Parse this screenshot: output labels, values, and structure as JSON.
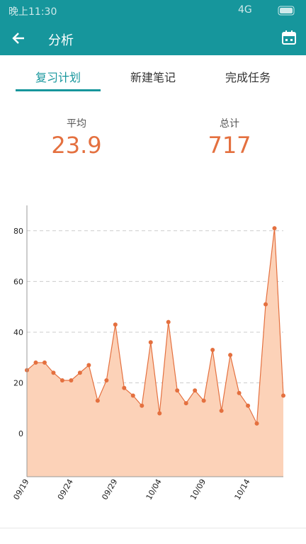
{
  "status_bar": {
    "time": "晚上11:30",
    "network": "4G"
  },
  "app_bar": {
    "title": "分析"
  },
  "tabs": [
    "复习计划",
    "新建笔记",
    "完成任务"
  ],
  "stats": [
    {
      "label": "平均",
      "value": "23.9"
    },
    {
      "label": "总计",
      "value": "717"
    }
  ],
  "chart_data": {
    "type": "area",
    "categories": [
      "09/19",
      null,
      null,
      null,
      null,
      "09/24",
      null,
      null,
      null,
      null,
      "09/29",
      null,
      null,
      null,
      null,
      "10/04",
      null,
      null,
      null,
      null,
      "10/09",
      null,
      null,
      null,
      null,
      "10/14",
      null,
      null,
      null,
      null
    ],
    "values": [
      25,
      28,
      28,
      24,
      21,
      21,
      24,
      27,
      13,
      21,
      43,
      18,
      15,
      11,
      36,
      8,
      44,
      17,
      12,
      17,
      13,
      33,
      9,
      31,
      16,
      11,
      4,
      51,
      81,
      15
    ],
    "color": "#e4703f",
    "fill": "#fcd2b8",
    "ylim": [
      -17,
      90
    ],
    "yticks": [
      0,
      20,
      40,
      60,
      80
    ],
    "grid": true
  }
}
